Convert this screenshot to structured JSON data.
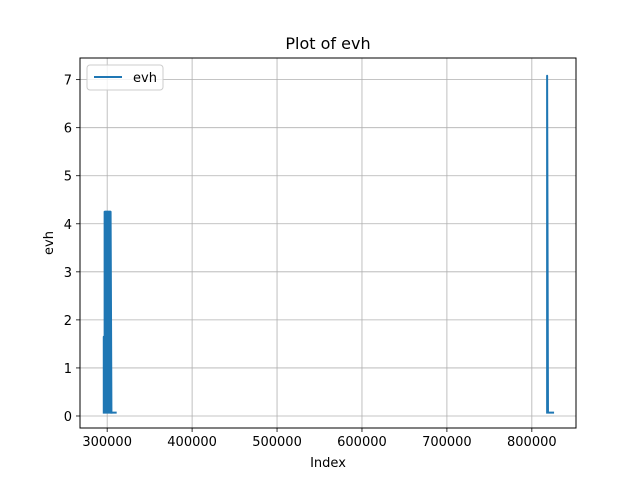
{
  "chart_data": {
    "type": "line",
    "title": "Plot of evh",
    "xlabel": "Index",
    "ylabel": "evh",
    "xlim": [
      268000,
      852000
    ],
    "ylim": [
      -0.25,
      7.45
    ],
    "x_ticks": [
      300000,
      400000,
      500000,
      600000,
      700000,
      800000
    ],
    "x_tick_labels": [
      "300000",
      "400000",
      "500000",
      "600000",
      "700000",
      "800000"
    ],
    "y_ticks": [
      0,
      1,
      2,
      3,
      4,
      5,
      6,
      7
    ],
    "y_tick_labels": [
      "0",
      "1",
      "2",
      "3",
      "4",
      "5",
      "6",
      "7"
    ],
    "grid": true,
    "legend": {
      "position": "top-left",
      "entries": [
        "evh"
      ]
    },
    "colors": {
      "series": "#1f77b4",
      "grid": "#b0b0b0"
    },
    "series": [
      {
        "name": "evh",
        "segments": [
          {
            "x": [
              296000,
              296000,
              296500,
              296500,
              297000,
              297000,
              297500,
              297500,
              298000,
              298000,
              298500,
              298500,
              299000,
              299000,
              299500,
              299500,
              300000,
              300000,
              300500,
              300500,
              301000,
              301000,
              301500,
              301500,
              302000,
              302000,
              302500,
              302500,
              303000,
              303000,
              303500,
              303500,
              304000,
              304000,
              305000
            ],
            "y": [
              0.07,
              1.65,
              1.65,
              0.07,
              0.07,
              4.25,
              4.25,
              0.07,
              0.07,
              4.25,
              4.25,
              0.07,
              0.07,
              4.25,
              4.25,
              0.07,
              0.07,
              4.25,
              4.25,
              0.07,
              0.07,
              4.25,
              4.25,
              0.07,
              0.07,
              4.25,
              4.25,
              0.07,
              0.07,
              4.25,
              4.25,
              0.07,
              0.07,
              4.25,
              0.07
            ]
          },
          {
            "x": [
              305000,
              310000
            ],
            "y": [
              0.07,
              0.07
            ]
          },
          {
            "x": [
              818000,
              818000,
              819000,
              825000
            ],
            "y": [
              0.07,
              7.08,
              0.07,
              0.07
            ]
          }
        ]
      }
    ]
  }
}
